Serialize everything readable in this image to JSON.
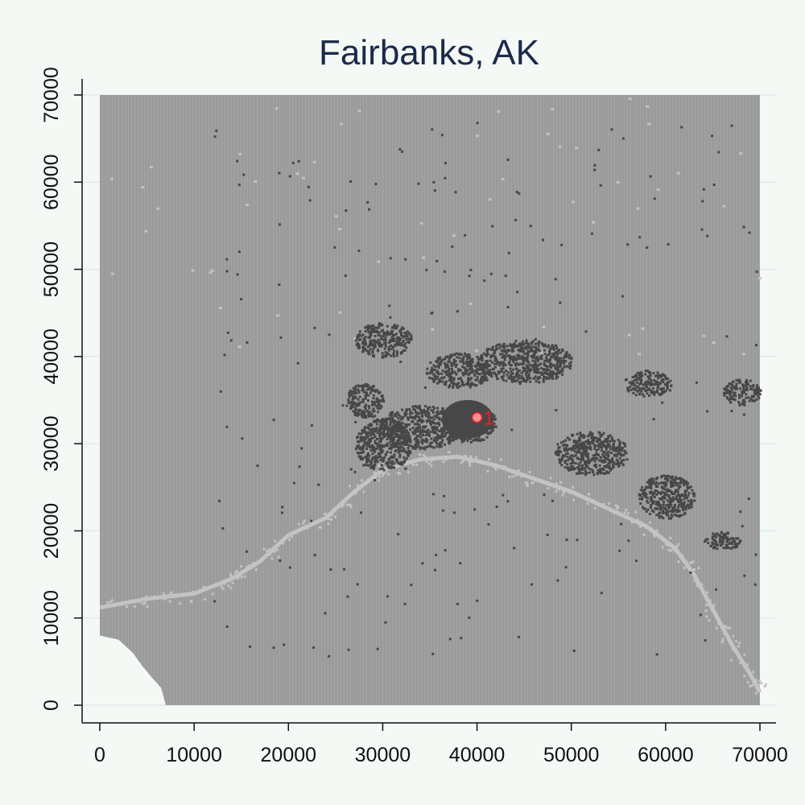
{
  "chart_data": {
    "type": "heatmap",
    "title": "Fairbanks, AK",
    "xlabel": "",
    "ylabel": "",
    "xlim": [
      0,
      70000
    ],
    "ylim": [
      0,
      70000
    ],
    "xticks": [
      "0",
      "10000",
      "20000",
      "30000",
      "40000",
      "50000",
      "60000",
      "70000"
    ],
    "yticks": [
      "0",
      "10000",
      "20000",
      "30000",
      "40000",
      "50000",
      "60000",
      "70000"
    ],
    "grid": true,
    "colors": {
      "background": "#f5f9f6",
      "land": "#9a9b9a",
      "water": "#c2c3c2",
      "developed": "#474747",
      "marker": "#e8202a",
      "title": "#1b2a4a"
    },
    "marker": {
      "x": 40000,
      "y": 33000,
      "label": "1"
    },
    "developed_clusters": [
      {
        "x": 39000,
        "y": 32500,
        "rx": 3000,
        "ry": 2300
      },
      {
        "x": 34000,
        "y": 32000,
        "rx": 4500,
        "ry": 2500
      },
      {
        "x": 30000,
        "y": 30000,
        "rx": 3000,
        "ry": 3000
      },
      {
        "x": 38000,
        "y": 38500,
        "rx": 3500,
        "ry": 2000
      },
      {
        "x": 45000,
        "y": 39500,
        "rx": 5000,
        "ry": 2500
      },
      {
        "x": 30000,
        "y": 42000,
        "rx": 3000,
        "ry": 2000
      },
      {
        "x": 60000,
        "y": 24000,
        "rx": 3000,
        "ry": 2500
      },
      {
        "x": 52000,
        "y": 29000,
        "rx": 4000,
        "ry": 2500
      },
      {
        "x": 28000,
        "y": 35000,
        "rx": 2000,
        "ry": 2000
      },
      {
        "x": 66000,
        "y": 19000,
        "rx": 2000,
        "ry": 1000
      },
      {
        "x": 68000,
        "y": 36000,
        "rx": 2000,
        "ry": 1500
      },
      {
        "x": 58000,
        "y": 37000,
        "rx": 2500,
        "ry": 1500
      }
    ],
    "river": [
      [
        0,
        11200
      ],
      [
        5000,
        12200
      ],
      [
        10000,
        12800
      ],
      [
        14000,
        14500
      ],
      [
        17000,
        16500
      ],
      [
        20000,
        19500
      ],
      [
        24000,
        21500
      ],
      [
        27000,
        24500
      ],
      [
        30000,
        27000
      ],
      [
        34000,
        28200
      ],
      [
        38000,
        28500
      ],
      [
        42000,
        27500
      ],
      [
        46000,
        26000
      ],
      [
        50000,
        24500
      ],
      [
        54000,
        22500
      ],
      [
        58000,
        20500
      ],
      [
        61000,
        18000
      ],
      [
        63000,
        15000
      ],
      [
        65000,
        11000
      ],
      [
        67000,
        7000
      ],
      [
        69000,
        3500
      ],
      [
        70000,
        1500
      ]
    ]
  }
}
